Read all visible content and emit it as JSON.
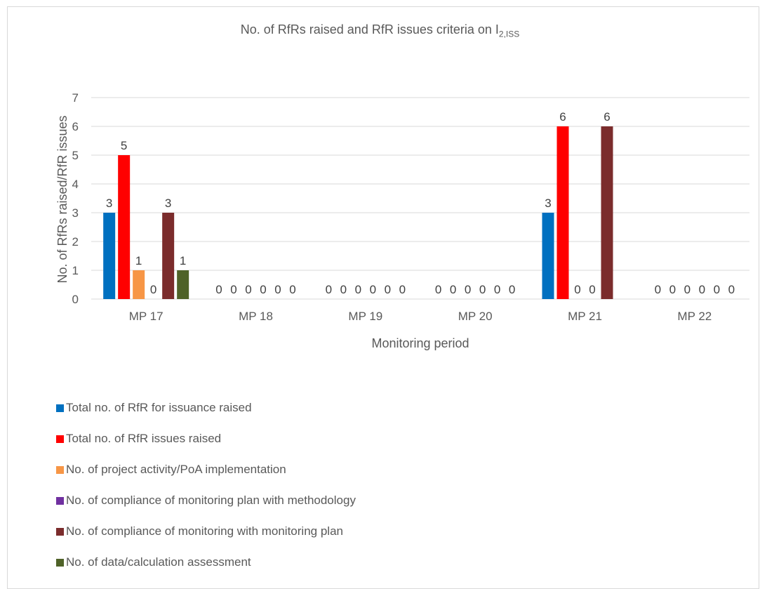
{
  "chart_data": {
    "type": "bar",
    "title_main": "No. of RfRs raised and RfR issues criteria on I",
    "title_sub": "2,ISS",
    "xlabel": "Monitoring period",
    "ylabel": "No. of RfRs raised/RfR issues",
    "ylim": [
      0,
      7
    ],
    "yticks": [
      "0",
      "1",
      "2",
      "3",
      "4",
      "5",
      "6",
      "7"
    ],
    "grid": true,
    "legend_position": "bottom",
    "categories": [
      "MP 17",
      "MP 18",
      "MP 19",
      "MP 20",
      "MP 21",
      "MP 22"
    ],
    "series": [
      {
        "name": "Total no. of RfR for issuance raised",
        "color": "#0070c0",
        "values": [
          3,
          0,
          0,
          0,
          3,
          0
        ]
      },
      {
        "name": "Total no. of RfR issues raised",
        "color": "#ff0000",
        "values": [
          5,
          0,
          0,
          0,
          6,
          0
        ]
      },
      {
        "name": "No. of project activity/PoA implementation",
        "color": "#f79646",
        "values": [
          1,
          0,
          0,
          0,
          0,
          0
        ]
      },
      {
        "name": "No. of compliance of monitoring plan with methodology",
        "color": "#7030a0",
        "values": [
          0,
          0,
          0,
          0,
          0,
          0
        ]
      },
      {
        "name": "No. of compliance of monitoring with monitoring plan",
        "color": "#7b2c2c",
        "values": [
          3,
          0,
          0,
          0,
          6,
          0
        ]
      },
      {
        "name": "No. of data/calculation assessment",
        "color": "#4f6228",
        "values": [
          1,
          0,
          0,
          0,
          null,
          0
        ]
      }
    ]
  }
}
